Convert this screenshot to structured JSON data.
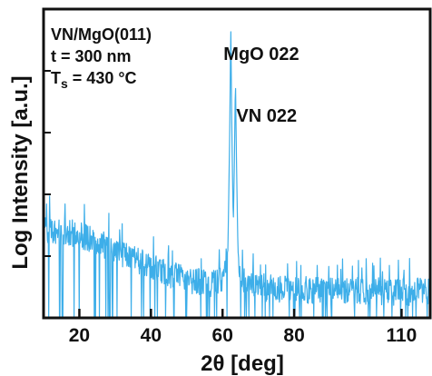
{
  "chart_data": {
    "type": "line",
    "title": "",
    "xlabel": "2θ [deg]",
    "ylabel": "Log Intensity [a.u.]",
    "xlim": [
      10,
      118
    ],
    "ylim": [
      0,
      1
    ],
    "y_scale": "log",
    "y_ticks_labeled": false,
    "grid": false,
    "x_ticks": [
      20,
      40,
      60,
      80,
      110
    ],
    "x_tick_labels": [
      "20",
      "40",
      "60",
      "80",
      "110"
    ],
    "annotation": {
      "line1": "VN/MgO(011)",
      "line2": "t = 300 nm",
      "line3_main": "T",
      "line3_sub": "s",
      "line3_rest": " = 430 °C"
    },
    "peaks": [
      {
        "name": "MgO 022",
        "x": 62.3,
        "y": 0.95
      },
      {
        "name": "VN 022",
        "x": 63.6,
        "y": 0.78
      }
    ],
    "series": [
      {
        "color": "#3daee9",
        "x": [
          10,
          15,
          20,
          25,
          30,
          35,
          40,
          45,
          50,
          55,
          58,
          60,
          61.5,
          62,
          62.3,
          62.6,
          63,
          63.3,
          63.6,
          63.9,
          64.3,
          65,
          67,
          70,
          75,
          80,
          85,
          90,
          95,
          100,
          105,
          110,
          115,
          118
        ],
        "y": [
          0.29,
          0.28,
          0.27,
          0.25,
          0.22,
          0.19,
          0.165,
          0.14,
          0.125,
          0.115,
          0.11,
          0.13,
          0.22,
          0.6,
          0.95,
          0.6,
          0.3,
          0.5,
          0.78,
          0.5,
          0.22,
          0.12,
          0.11,
          0.1,
          0.095,
          0.09,
          0.09,
          0.088,
          0.086,
          0.085,
          0.085,
          0.085,
          0.085,
          0.085
        ]
      }
    ]
  }
}
